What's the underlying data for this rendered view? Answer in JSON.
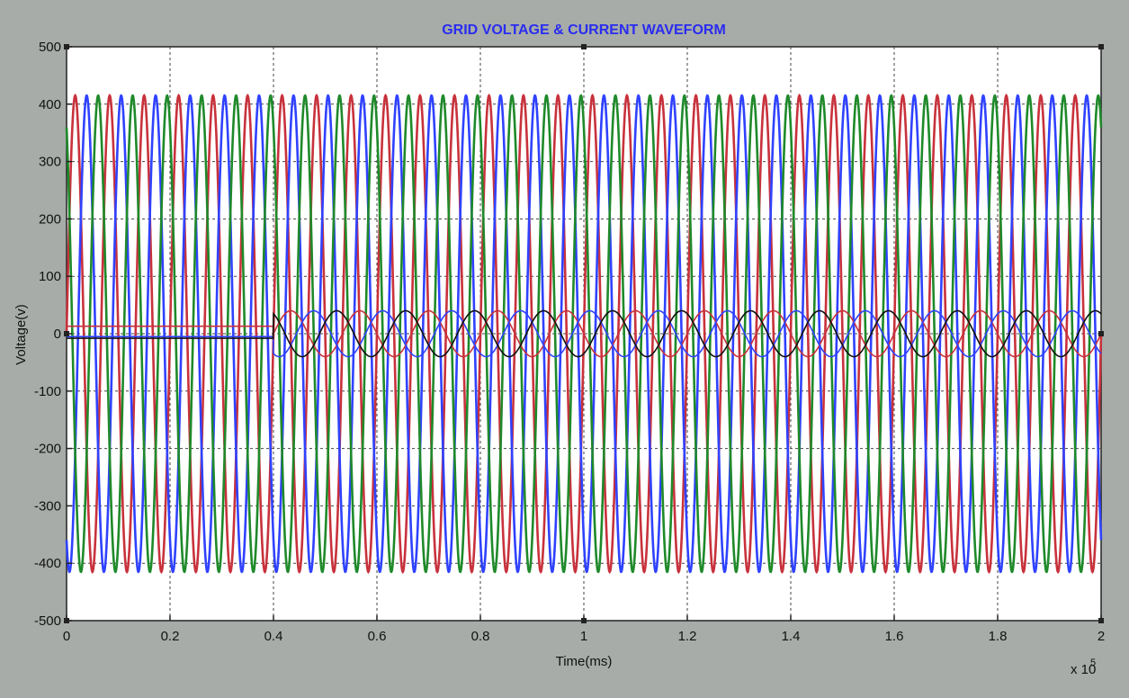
{
  "chart_data": {
    "type": "line",
    "title": "GRID VOLTAGE & CURRENT  WAVEFORM",
    "xlabel": "Time(ms)",
    "ylabel": "Voltage(v)",
    "x_multiplier": "x 10",
    "x_multiplier_exp": "5",
    "xlim": [
      0,
      2
    ],
    "ylim": [
      -500,
      500
    ],
    "x_ticks": [
      "0",
      "0.2",
      "0.4",
      "0.6",
      "0.8",
      "1",
      "1.2",
      "1.4",
      "1.6",
      "1.8",
      "2"
    ],
    "y_ticks": [
      "500",
      "400",
      "300",
      "200",
      "100",
      "0",
      "-100",
      "-200",
      "-300",
      "-400",
      "-500"
    ],
    "grid": true,
    "voltage_series": [
      {
        "color": "#c8323c",
        "amplitude": 415,
        "cycles": 30,
        "phase_deg": 0
      },
      {
        "color": "#2f42ff",
        "amplitude": 415,
        "cycles": 30,
        "phase_deg": -120
      },
      {
        "color": "#1f8a2a",
        "amplitude": 415,
        "cycles": 30,
        "phase_deg": 120
      }
    ],
    "current_series": [
      {
        "color": "#c8323c",
        "amplitude": 40,
        "cycles": 15,
        "phase_deg": 0,
        "pre_value": 13,
        "start": 0.4
      },
      {
        "color": "#2f42ff",
        "amplitude": 40,
        "cycles": 15,
        "phase_deg": -120,
        "pre_value": -5,
        "start": 0.4
      },
      {
        "color": "#111111",
        "amplitude": 40,
        "cycles": 15,
        "phase_deg": 120,
        "pre_value": -8,
        "start": 0.4
      }
    ]
  }
}
